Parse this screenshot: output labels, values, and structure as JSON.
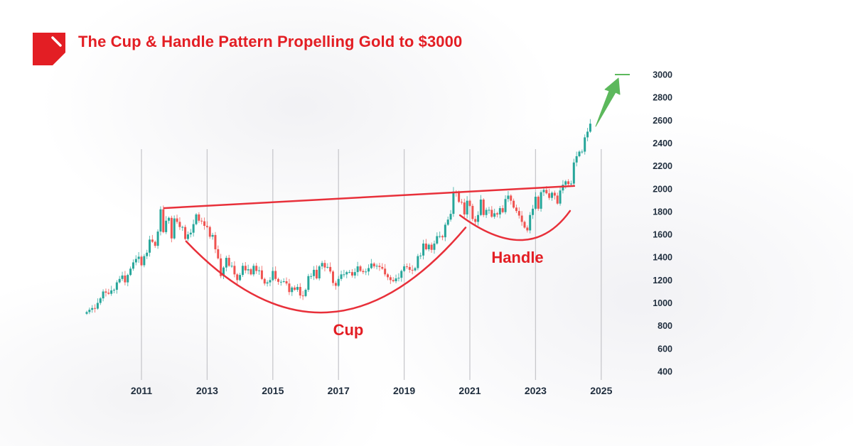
{
  "title": "The Cup & Handle Pattern Propelling Gold to $3000",
  "colors": {
    "brand": "#e31e24",
    "up": "#26a69a",
    "down": "#ef5350",
    "pattern": "#e8303a",
    "target": "#5cb85c"
  },
  "chart_data": {
    "type": "candlestick",
    "title": "The Cup & Handle Pattern Propelling Gold to $3000",
    "interval": "month",
    "start": "2009-05",
    "closes": [
      920,
      940,
      955,
      950,
      1000,
      1040,
      1100,
      1090,
      1080,
      1110,
      1115,
      1180,
      1210,
      1240,
      1180,
      1245,
      1300,
      1355,
      1385,
      1405,
      1330,
      1410,
      1440,
      1555,
      1535,
      1500,
      1625,
      1820,
      1620,
      1720,
      1745,
      1565,
      1740,
      1710,
      1665,
      1665,
      1560,
      1600,
      1615,
      1690,
      1775,
      1720,
      1715,
      1675,
      1665,
      1580,
      1595,
      1470,
      1390,
      1235,
      1310,
      1395,
      1325,
      1325,
      1250,
      1200,
      1245,
      1325,
      1285,
      1295,
      1250,
      1325,
      1280,
      1285,
      1210,
      1170,
      1180,
      1200,
      1280,
      1210,
      1185,
      1185,
      1190,
      1170,
      1095,
      1135,
      1115,
      1140,
      1065,
      1060,
      1115,
      1235,
      1235,
      1290,
      1215,
      1320,
      1350,
      1310,
      1315,
      1275,
      1175,
      1150,
      1210,
      1250,
      1250,
      1270,
      1270,
      1240,
      1270,
      1320,
      1280,
      1270,
      1275,
      1305,
      1345,
      1320,
      1325,
      1315,
      1300,
      1250,
      1225,
      1200,
      1190,
      1215,
      1220,
      1280,
      1320,
      1315,
      1290,
      1285,
      1305,
      1410,
      1415,
      1520,
      1470,
      1510,
      1465,
      1520,
      1585,
      1585,
      1575,
      1685,
      1730,
      1780,
      1975,
      1965,
      1885,
      1880,
      1775,
      1895,
      1850,
      1735,
      1710,
      1770,
      1905,
      1770,
      1815,
      1815,
      1755,
      1785,
      1775,
      1830,
      1795,
      1910,
      1940,
      1895,
      1835,
      1805,
      1765,
      1710,
      1660,
      1635,
      1770,
      1825,
      1930,
      1825,
      1970,
      1990,
      1960,
      1920,
      1965,
      1940,
      1870,
      1985,
      2035,
      2065,
      2040,
      2045,
      2230,
      2285,
      2325,
      2325,
      2450,
      2500,
      2570
    ],
    "x_ticks": [
      "2011",
      "2013",
      "2015",
      "2017",
      "2019",
      "2021",
      "2023",
      "2025"
    ],
    "y_ticks": [
      3000,
      2800,
      2600,
      2400,
      2200,
      2000,
      1800,
      1600,
      1400,
      1200,
      1000,
      800,
      600,
      400
    ],
    "ylim": [
      400,
      3000
    ],
    "xlim": [
      2009,
      2026
    ],
    "grid": "vertical at x ticks",
    "annotations": {
      "resistance": [
        [
          2011.67,
          1830
        ],
        [
          2024.2,
          2025
        ]
      ],
      "cup": {
        "label": "Cup",
        "points": [
          [
            2012.36,
            1540
          ],
          [
            2016.65,
            917
          ],
          [
            2020.87,
            1660
          ]
        ]
      },
      "handle": {
        "label": "Handle",
        "points": [
          [
            2020.7,
            1768
          ],
          [
            2022.6,
            1551
          ],
          [
            2024.05,
            1806
          ]
        ]
      },
      "target": {
        "value": 3000,
        "arrow_from": [
          2024.85,
          2550
        ],
        "arrow_to": [
          2025.5,
          2950
        ]
      }
    }
  }
}
